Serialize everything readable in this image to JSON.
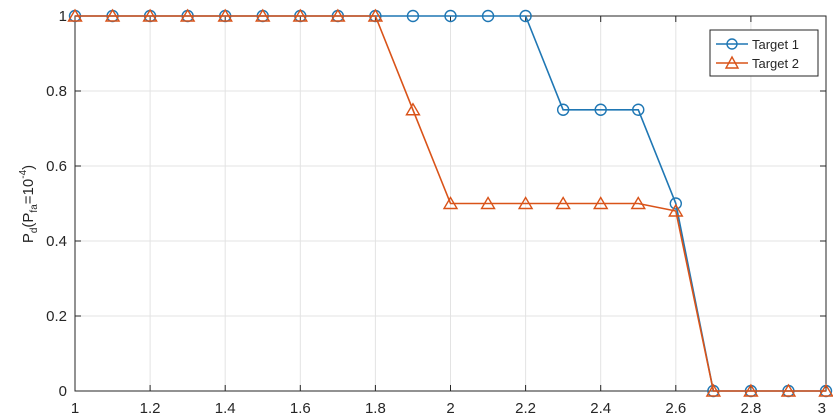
{
  "chart_data": {
    "type": "line",
    "x": [
      1,
      1.1,
      1.2,
      1.3,
      1.4,
      1.5,
      1.6,
      1.7,
      1.8,
      1.9,
      2.0,
      2.1,
      2.2,
      2.3,
      2.4,
      2.5,
      2.6,
      2.7,
      2.8,
      2.9,
      3.0
    ],
    "series": [
      {
        "name": "Target 1",
        "color": "#1f77b4",
        "marker": "circle",
        "values": [
          1,
          1,
          1,
          1,
          1,
          1,
          1,
          1,
          1,
          1,
          1,
          1,
          1,
          0.75,
          0.75,
          0.75,
          0.5,
          0,
          0,
          0,
          0
        ]
      },
      {
        "name": "Target 2",
        "color": "#d95319",
        "marker": "triangle",
        "values": [
          1,
          1,
          1,
          1,
          1,
          1,
          1,
          1,
          1,
          0.75,
          0.5,
          0.5,
          0.5,
          0.5,
          0.5,
          0.5,
          0.48,
          0,
          0,
          0,
          0
        ]
      }
    ],
    "xlim": [
      1,
      3
    ],
    "ylim": [
      0,
      1
    ],
    "xticks": [
      1,
      1.2,
      1.4,
      1.6,
      1.8,
      2,
      2.2,
      2.4,
      2.6,
      2.8,
      3
    ],
    "xtick_labels": [
      "1",
      "1.2",
      "1.4",
      "1.6",
      "1.8",
      "2",
      "2.2",
      "2.4",
      "2.6",
      "2.8",
      "3"
    ],
    "yticks": [
      0,
      0.2,
      0.4,
      0.6,
      0.8,
      1
    ],
    "ytick_labels": [
      "0",
      "0.2",
      "0.4",
      "0.6",
      "0.8",
      "1"
    ],
    "ylabel": {
      "main": "P",
      "main_sub": "d",
      "paren_open": "(P",
      "inner_sub": "fa",
      "equals": "=10",
      "exponent": "-4",
      "paren_close": ")"
    },
    "grid": true,
    "legend_position": "top-right"
  }
}
